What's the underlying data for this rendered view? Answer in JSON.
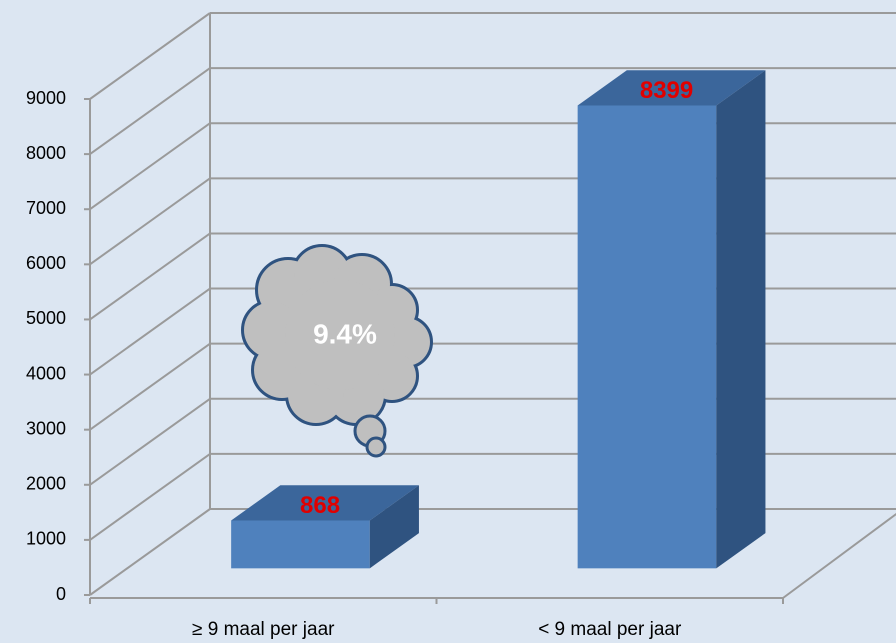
{
  "chart_data": {
    "type": "bar3d",
    "categories": [
      "≥ 9 maal per jaar",
      "< 9 maal per jaar"
    ],
    "values": [
      868,
      8399
    ],
    "color": "#4f81bd",
    "value_label_color": "#e00000",
    "annotation": "9.4%",
    "ylim": [
      0,
      9000
    ],
    "yticks": [
      0,
      1000,
      2000,
      3000,
      4000,
      5000,
      6000,
      7000,
      8000,
      9000
    ],
    "grid": true
  }
}
